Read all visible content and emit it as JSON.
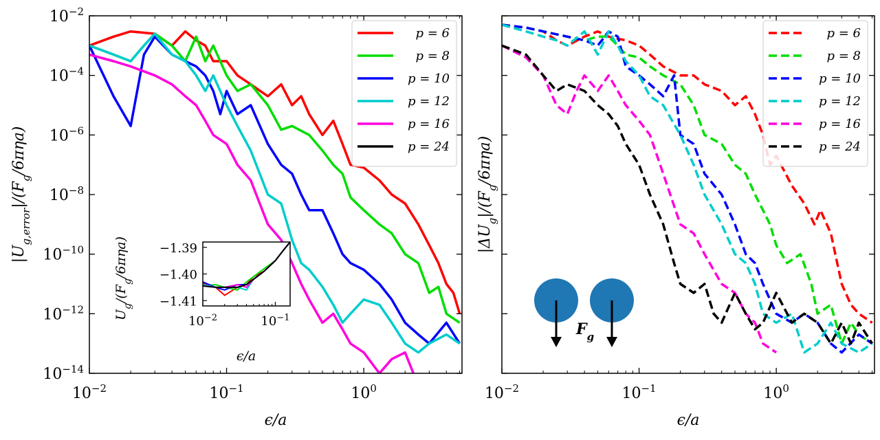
{
  "chart_data": [
    {
      "type": "line",
      "panel": "left",
      "xscale": "log",
      "yscale": "log",
      "xlim": [
        0.01,
        5.2
      ],
      "ylim": [
        1e-14,
        0.01
      ],
      "xlabel": "ϵ/a",
      "ylabel": "|U_g,error|/(F_g/6πηa)",
      "xticks": [
        {
          "value": 0.01,
          "base": "10",
          "exp": "−2"
        },
        {
          "value": 0.1,
          "base": "10",
          "exp": "−1"
        },
        {
          "value": 1,
          "base": "10",
          "exp": "0"
        }
      ],
      "yticks": [
        {
          "value": 0.01,
          "base": "10",
          "exp": "−2"
        },
        {
          "value": 0.0001,
          "base": "10",
          "exp": "−4"
        },
        {
          "value": 1e-06,
          "base": "10",
          "exp": "−6"
        },
        {
          "value": 1e-08,
          "base": "10",
          "exp": "−8"
        },
        {
          "value": 1e-10,
          "base": "10",
          "exp": "−10"
        },
        {
          "value": 1e-12,
          "base": "10",
          "exp": "−12"
        },
        {
          "value": 1e-14,
          "base": "10",
          "exp": "−14"
        }
      ],
      "legend": {
        "position": "top-right"
      },
      "series": [
        {
          "name": "p = 6",
          "color": "#ff0000",
          "dash": "solid",
          "x": [
            0.01,
            0.015,
            0.02,
            0.03,
            0.04,
            0.05,
            0.06,
            0.07,
            0.08,
            0.1,
            0.12,
            0.15,
            0.2,
            0.25,
            0.3,
            0.35,
            0.4,
            0.5,
            0.6,
            0.7,
            0.8,
            1.0,
            1.3,
            1.6,
            2.0,
            2.5,
            3.0,
            3.5,
            4.0,
            4.5,
            5.0
          ],
          "y": [
            0.001,
            0.002,
            0.003,
            0.0025,
            0.001,
            0.003,
            0.0015,
            0.001,
            0.0003,
            0.0003,
            0.0001,
            5e-05,
            2e-05,
            5e-05,
            1e-05,
            2e-05,
            5e-06,
            1e-06,
            3e-06,
            5e-07,
            1e-07,
            8e-08,
            3e-08,
            1e-08,
            5e-09,
            1e-09,
            2e-10,
            5e-11,
            1e-11,
            5e-12,
            1e-12
          ]
        },
        {
          "name": "p = 8",
          "color": "#00dd00",
          "dash": "solid",
          "x": [
            0.01,
            0.015,
            0.02,
            0.025,
            0.03,
            0.04,
            0.05,
            0.06,
            0.07,
            0.08,
            0.1,
            0.12,
            0.15,
            0.2,
            0.25,
            0.3,
            0.4,
            0.5,
            0.6,
            0.7,
            0.8,
            1.0,
            1.3,
            1.6,
            2.0,
            2.5,
            3.0,
            3.5,
            4.0,
            5.0
          ],
          "y": [
            0.001,
            0.0005,
            0.0003,
            0.001,
            0.0025,
            0.001,
            0.0003,
            0.002,
            0.0003,
            0.001,
            0.0001,
            3e-05,
            5e-05,
            1e-05,
            1.5e-06,
            2e-06,
            1e-06,
            3e-07,
            1e-07,
            5e-08,
            8e-09,
            3e-09,
            1e-09,
            5e-10,
            1e-10,
            5e-11,
            5e-12,
            8e-12,
            1e-12,
            5e-13
          ]
        },
        {
          "name": "p = 10",
          "color": "#0000ff",
          "dash": "solid",
          "x": [
            0.01,
            0.015,
            0.02,
            0.025,
            0.03,
            0.04,
            0.05,
            0.06,
            0.07,
            0.08,
            0.09,
            0.1,
            0.12,
            0.15,
            0.2,
            0.25,
            0.3,
            0.35,
            0.4,
            0.5,
            0.6,
            0.7,
            0.8,
            1.0,
            1.3,
            1.6,
            2.0,
            2.5,
            3.0,
            4.0,
            5.0
          ],
          "y": [
            0.001,
            2e-05,
            2e-06,
            0.0005,
            0.002,
            0.0005,
            0.0003,
            0.0002,
            0.0001,
            3e-05,
            5e-06,
            3e-05,
            5e-06,
            1e-05,
            5e-07,
            1e-07,
            5e-08,
            1e-08,
            3e-09,
            3e-09,
            5e-10,
            1e-10,
            5e-11,
            3e-11,
            1e-11,
            3e-12,
            5e-13,
            2e-13,
            1e-13,
            5e-13,
            1e-13
          ]
        },
        {
          "name": "p = 12",
          "color": "#00cccc",
          "dash": "solid",
          "x": [
            0.01,
            0.015,
            0.02,
            0.025,
            0.03,
            0.04,
            0.05,
            0.06,
            0.07,
            0.08,
            0.1,
            0.12,
            0.15,
            0.2,
            0.25,
            0.3,
            0.35,
            0.4,
            0.5,
            0.6,
            0.7,
            0.8,
            1.0,
            1.3,
            1.6,
            2.0,
            2.5,
            3.0,
            4.0,
            5.0
          ],
          "y": [
            0.001,
            0.0005,
            0.0003,
            0.001,
            0.0025,
            0.0005,
            0.0003,
            0.0001,
            3e-05,
            0.0001,
            1e-05,
            2e-06,
            3e-07,
            1e-08,
            5e-09,
            3e-10,
            5e-11,
            3e-11,
            8e-12,
            2e-12,
            5e-13,
            1e-12,
            3e-12,
            2e-12,
            5e-13,
            1e-13,
            5e-14,
            1e-13,
            2e-13,
            1e-13
          ]
        },
        {
          "name": "p = 16",
          "color": "#ff00dd",
          "dash": "solid",
          "x": [
            0.01,
            0.015,
            0.02,
            0.03,
            0.04,
            0.05,
            0.06,
            0.07,
            0.08,
            0.1,
            0.12,
            0.15,
            0.2,
            0.25,
            0.3,
            0.35,
            0.4,
            0.5,
            0.6,
            0.7,
            0.8,
            1.0,
            1.3,
            1.6,
            2.0,
            2.3
          ],
          "y": [
            0.0005,
            0.0003,
            0.0002,
            0.0001,
            5e-05,
            2e-05,
            1e-05,
            3e-06,
            1e-06,
            5e-07,
            1e-07,
            3e-08,
            1e-09,
            3e-10,
            5e-11,
            1e-11,
            3e-12,
            5e-13,
            1e-12,
            3e-13,
            1e-13,
            5e-14,
            1e-14,
            3e-14,
            5e-14,
            1e-14
          ]
        },
        {
          "name": "p = 24",
          "color": "#000000",
          "dash": "solid",
          "x": [],
          "y": []
        }
      ],
      "inset": {
        "xscale": "log",
        "xlim": [
          0.01,
          0.16
        ],
        "ylim": [
          -1.412,
          -1.388
        ],
        "xlabel": "ϵ/a",
        "ylabel": "U_g/(F_g/6πηa)",
        "yticks": [
          {
            "value": -1.39,
            "label": "−1.39"
          },
          {
            "value": -1.4,
            "label": "−1.40"
          },
          {
            "value": -1.41,
            "label": "−1.41"
          }
        ],
        "xticks": [
          {
            "value": 0.01,
            "base": "10",
            "exp": "−2"
          },
          {
            "value": 0.1,
            "base": "10",
            "exp": "−1"
          }
        ],
        "x": [
          0.01,
          0.015,
          0.02,
          0.03,
          0.04,
          0.05,
          0.07,
          0.1,
          0.13,
          0.16
        ],
        "series": [
          {
            "color": "#ff0000",
            "y": [
              -1.4035,
              -1.405,
              -1.408,
              -1.405,
              -1.404,
              -1.401,
              -1.399,
              -1.395,
              -1.391,
              -1.388
            ]
          },
          {
            "color": "#00dd00",
            "y": [
              -1.4045,
              -1.404,
              -1.405,
              -1.406,
              -1.403,
              -1.401,
              -1.398,
              -1.395,
              -1.391,
              -1.388
            ]
          },
          {
            "color": "#0000ff",
            "y": [
              -1.403,
              -1.405,
              -1.406,
              -1.404,
              -1.404,
              -1.402,
              -1.399,
              -1.395,
              -1.391,
              -1.388
            ]
          },
          {
            "color": "#00cccc",
            "y": [
              -1.404,
              -1.405,
              -1.405,
              -1.405,
              -1.406,
              -1.402,
              -1.399,
              -1.395,
              -1.391,
              -1.388
            ]
          },
          {
            "color": "#ff00dd",
            "y": [
              -1.4045,
              -1.405,
              -1.405,
              -1.404,
              -1.405,
              -1.402,
              -1.399,
              -1.395,
              -1.391,
              -1.388
            ]
          },
          {
            "color": "#000000",
            "y": [
              -1.4045,
              -1.405,
              -1.405,
              -1.405,
              -1.404,
              -1.402,
              -1.399,
              -1.395,
              -1.391,
              -1.388
            ]
          }
        ]
      }
    },
    {
      "type": "line",
      "panel": "right",
      "xscale": "log",
      "yscale": "log",
      "xlim": [
        0.01,
        5.2
      ],
      "ylim": [
        1e-14,
        0.01
      ],
      "xlabel": "ϵ/a",
      "ylabel": "|ΔU_g|/(F_g/6πηa)",
      "xticks": [
        {
          "value": 0.01,
          "base": "10",
          "exp": "−2"
        },
        {
          "value": 0.1,
          "base": "10",
          "exp": "−1"
        },
        {
          "value": 1,
          "base": "10",
          "exp": "0"
        }
      ],
      "yticks": [
        {
          "value": 0.01
        },
        {
          "value": 0.0001
        },
        {
          "value": 1e-06
        },
        {
          "value": 1e-08
        },
        {
          "value": 1e-10
        },
        {
          "value": 1e-12
        },
        {
          "value": 1e-14
        }
      ],
      "legend": {
        "position": "top-right"
      },
      "annotation": {
        "label_base": "F",
        "label_sub": "g",
        "description": "two spheres with downward force arrows"
      },
      "series": [
        {
          "name": "p = 6",
          "color": "#ff0000",
          "dash": "dashed",
          "x": [
            0.01,
            0.015,
            0.02,
            0.025,
            0.03,
            0.04,
            0.05,
            0.06,
            0.08,
            0.1,
            0.12,
            0.15,
            0.2,
            0.25,
            0.3,
            0.4,
            0.5,
            0.6,
            0.7,
            0.8,
            0.9,
            1.0,
            1.3,
            1.6,
            1.9,
            2.1,
            2.5,
            3.0,
            3.5,
            4.0,
            5.0
          ],
          "y": [
            0.005,
            0.004,
            0.003,
            0.0015,
            0.001,
            0.002,
            0.003,
            0.002,
            0.0015,
            0.001,
            0.0005,
            0.0002,
            0.0001,
            0.0001,
            5e-05,
            3e-05,
            1e-05,
            2e-05,
            5e-06,
            1e-06,
            1e-07,
            2e-07,
            2e-08,
            5e-09,
            1e-09,
            3e-09,
            5e-10,
            1e-11,
            2e-12,
            1e-12,
            5e-13
          ]
        },
        {
          "name": "p = 8",
          "color": "#00dd00",
          "dash": "dashed",
          "x": [
            0.01,
            0.015,
            0.02,
            0.03,
            0.04,
            0.05,
            0.06,
            0.07,
            0.08,
            0.1,
            0.12,
            0.15,
            0.2,
            0.25,
            0.3,
            0.4,
            0.5,
            0.6,
            0.7,
            0.8,
            0.9,
            1.0,
            1.2,
            1.5,
            1.8,
            2.0,
            2.5,
            3.0,
            3.5,
            4.0,
            5.0
          ],
          "y": [
            0.005,
            0.004,
            0.003,
            0.002,
            0.0015,
            0.002,
            0.002,
            0.001,
            0.0005,
            0.0004,
            0.0002,
            0.0001,
            5e-05,
            1e-05,
            1e-06,
            5e-07,
            1e-07,
            5e-08,
            1e-08,
            3e-09,
            1e-09,
            2e-10,
            5e-11,
            1e-10,
            1e-11,
            1e-12,
            2e-12,
            1e-13,
            5e-13,
            2e-13,
            1e-13
          ]
        },
        {
          "name": "p = 10",
          "color": "#0000ff",
          "dash": "dashed",
          "x": [
            0.01,
            0.015,
            0.02,
            0.03,
            0.04,
            0.05,
            0.06,
            0.07,
            0.08,
            0.1,
            0.12,
            0.15,
            0.18,
            0.2,
            0.25,
            0.3,
            0.4,
            0.5,
            0.6,
            0.7,
            0.8,
            1.0,
            1.3,
            1.6,
            2.0,
            2.5,
            3.0,
            4.0,
            5.0
          ],
          "y": [
            0.005,
            0.004,
            0.003,
            0.002,
            0.0015,
            0.001,
            0.003,
            0.002,
            0.0002,
            0.0001,
            5e-05,
            2e-05,
            0.0001,
            1e-06,
            5e-07,
            5e-08,
            1e-08,
            1e-09,
            1e-10,
            5e-11,
            1e-11,
            1e-12,
            5e-13,
            1e-12,
            5e-13,
            1e-13,
            5e-14,
            2e-13,
            1e-13
          ]
        },
        {
          "name": "p = 12",
          "color": "#00cccc",
          "dash": "dashed",
          "x": [
            0.01,
            0.015,
            0.02,
            0.025,
            0.03,
            0.04,
            0.05,
            0.06,
            0.07,
            0.08,
            0.1,
            0.12,
            0.15,
            0.2,
            0.25,
            0.3,
            0.4,
            0.5,
            0.6,
            0.7,
            0.8,
            1.0,
            1.3,
            1.6,
            2.0,
            2.5,
            3.0,
            4.0,
            5.0
          ],
          "y": [
            0.005,
            0.003,
            0.002,
            0.0015,
            0.001,
            0.003,
            0.0005,
            0.003,
            0.001,
            0.0003,
            0.0001,
            2e-05,
            1e-05,
            1e-06,
            1e-07,
            1e-08,
            1e-09,
            1e-10,
            5e-11,
            1e-11,
            1e-12,
            5e-13,
            1e-12,
            5e-14,
            1e-13,
            5e-13,
            1e-13,
            5e-14,
            1e-13
          ]
        },
        {
          "name": "p = 16",
          "color": "#ff00dd",
          "dash": "dashed",
          "x": [
            0.01,
            0.015,
            0.02,
            0.025,
            0.03,
            0.035,
            0.04,
            0.05,
            0.06,
            0.07,
            0.08,
            0.1,
            0.12,
            0.15,
            0.2,
            0.25,
            0.3,
            0.4,
            0.5,
            0.6,
            0.7,
            0.8,
            1.0
          ],
          "y": [
            0.001,
            0.0004,
            0.0001,
            1e-05,
            5e-06,
            3e-05,
            0.0001,
            3e-05,
            0.0001,
            3e-05,
            1e-05,
            3e-06,
            1e-06,
            5e-08,
            1e-09,
            5e-10,
            1e-10,
            1e-11,
            5e-12,
            1e-12,
            5e-13,
            1e-13,
            5e-14
          ]
        },
        {
          "name": "p = 24",
          "color": "#000000",
          "dash": "dashed",
          "x": [
            0.01,
            0.015,
            0.02,
            0.025,
            0.03,
            0.04,
            0.05,
            0.06,
            0.07,
            0.08,
            0.1,
            0.12,
            0.15,
            0.18,
            0.2,
            0.25,
            0.3,
            0.35,
            0.4,
            0.5,
            0.6,
            0.7,
            0.8,
            1.0,
            1.3,
            1.6,
            2.0,
            2.5,
            3.0,
            3.5,
            4.0,
            5.0
          ],
          "y": [
            0.001,
            0.0005,
            0.0001,
            3e-05,
            5e-05,
            3e-05,
            1e-05,
            5e-06,
            2e-06,
            5e-07,
            1e-07,
            1e-08,
            1e-09,
            5e-11,
            1e-11,
            5e-12,
            1e-11,
            1e-12,
            5e-13,
            5e-12,
            1e-12,
            3e-13,
            5e-13,
            5e-12,
            5e-13,
            1e-12,
            5e-13,
            1e-13,
            5e-13,
            1e-13,
            5e-13,
            1e-13
          ]
        }
      ]
    }
  ]
}
